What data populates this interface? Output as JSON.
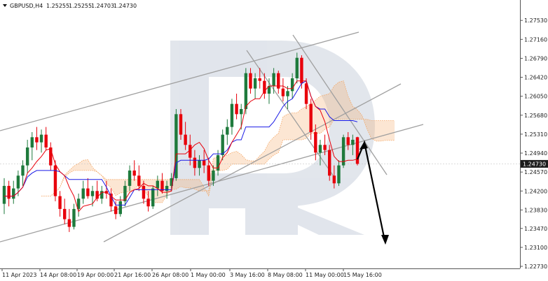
{
  "header": {
    "symbol": "GBPUSD,H4",
    "open": "1.25255",
    "high": "1.25255",
    "low": "1.24703",
    "close": "1.24730"
  },
  "colors": {
    "bull": "#1e7a3c",
    "bear": "#e8000b",
    "tenkan": "#e8000b",
    "kijun": "#1a1ae6",
    "cloud": "#f4a460",
    "trendline": "#a0a0a0",
    "arrow": "#000000",
    "watermark": "#d8dde6",
    "price_tag_bg": "#1c1c1c"
  },
  "chart_data": {
    "type": "candlestick",
    "y_ticks": [
      "1.27530",
      "1.27160",
      "1.26790",
      "1.26420",
      "1.26050",
      "1.25680",
      "1.25310",
      "1.24940",
      "1.24570",
      "1.24200",
      "1.23830",
      "1.23470",
      "1.23100",
      "1.22730"
    ],
    "ylim": [
      1.2273,
      1.2771
    ],
    "current_price": "1.24730",
    "x_ticks": [
      "11 Apr 2023",
      "14 Apr 08:00",
      "19 Apr 00:00",
      "21 Apr 16:00",
      "26 Apr 08:00",
      "1 May 00:00",
      "3 May 16:00",
      "8 May 08:00",
      "11 May 00:00",
      "15 May 16:00"
    ],
    "candles": [
      [
        1.2395,
        1.2445,
        1.2375,
        1.243
      ],
      [
        1.243,
        1.244,
        1.239,
        1.2405
      ],
      [
        1.2405,
        1.244,
        1.2395,
        1.2425
      ],
      [
        1.2425,
        1.246,
        1.241,
        1.245
      ],
      [
        1.245,
        1.248,
        1.243,
        1.247
      ],
      [
        1.247,
        1.252,
        1.2455,
        1.2505
      ],
      [
        1.2505,
        1.2535,
        1.248,
        1.2525
      ],
      [
        1.2525,
        1.2545,
        1.25,
        1.2515
      ],
      [
        1.2515,
        1.254,
        1.2495,
        1.253
      ],
      [
        1.253,
        1.2545,
        1.25,
        1.2505
      ],
      [
        1.2505,
        1.2515,
        1.246,
        1.247
      ],
      [
        1.247,
        1.248,
        1.24,
        1.241
      ],
      [
        1.241,
        1.242,
        1.237,
        1.2385
      ],
      [
        1.2385,
        1.2405,
        1.2355,
        1.2365
      ],
      [
        1.2365,
        1.2385,
        1.234,
        1.235
      ],
      [
        1.235,
        1.2395,
        1.2345,
        1.2385
      ],
      [
        1.2385,
        1.2415,
        1.237,
        1.2405
      ],
      [
        1.2405,
        1.244,
        1.2395,
        1.2425
      ],
      [
        1.2425,
        1.2445,
        1.2405,
        1.241
      ],
      [
        1.241,
        1.243,
        1.239,
        1.242
      ],
      [
        1.242,
        1.244,
        1.24,
        1.2405
      ],
      [
        1.2405,
        1.243,
        1.2395,
        1.242
      ],
      [
        1.242,
        1.244,
        1.2405,
        1.2415
      ],
      [
        1.2415,
        1.2425,
        1.238,
        1.239
      ],
      [
        1.239,
        1.24,
        1.2365,
        1.2375
      ],
      [
        1.2375,
        1.241,
        1.237,
        1.24
      ],
      [
        1.24,
        1.244,
        1.239,
        1.243
      ],
      [
        1.243,
        1.247,
        1.242,
        1.246
      ],
      [
        1.246,
        1.248,
        1.244,
        1.245
      ],
      [
        1.245,
        1.247,
        1.242,
        1.243
      ],
      [
        1.243,
        1.244,
        1.2395,
        1.2405
      ],
      [
        1.2405,
        1.242,
        1.238,
        1.239
      ],
      [
        1.239,
        1.243,
        1.2385,
        1.2425
      ],
      [
        1.2425,
        1.245,
        1.241,
        1.244
      ],
      [
        1.244,
        1.2455,
        1.2415,
        1.242
      ],
      [
        1.242,
        1.244,
        1.2405,
        1.243
      ],
      [
        1.243,
        1.2455,
        1.242,
        1.2445
      ],
      [
        1.2445,
        1.258,
        1.244,
        1.257
      ],
      [
        1.257,
        1.258,
        1.252,
        1.253
      ],
      [
        1.253,
        1.2555,
        1.25,
        1.251
      ],
      [
        1.251,
        1.253,
        1.247,
        1.2485
      ],
      [
        1.2485,
        1.25,
        1.245,
        1.2465
      ],
      [
        1.2465,
        1.249,
        1.245,
        1.248
      ],
      [
        1.248,
        1.25,
        1.2455,
        1.247
      ],
      [
        1.247,
        1.2485,
        1.243,
        1.244
      ],
      [
        1.244,
        1.247,
        1.243,
        1.246
      ],
      [
        1.246,
        1.25,
        1.245,
        1.249
      ],
      [
        1.249,
        1.254,
        1.248,
        1.253
      ],
      [
        1.253,
        1.256,
        1.251,
        1.2545
      ],
      [
        1.2545,
        1.26,
        1.253,
        1.259
      ],
      [
        1.259,
        1.261,
        1.256,
        1.257
      ],
      [
        1.257,
        1.259,
        1.254,
        1.258
      ],
      [
        1.258,
        1.266,
        1.257,
        1.265
      ],
      [
        1.265,
        1.266,
        1.261,
        1.262
      ],
      [
        1.262,
        1.265,
        1.26,
        1.264
      ],
      [
        1.264,
        1.266,
        1.262,
        1.2635
      ],
      [
        1.2635,
        1.265,
        1.26,
        1.261
      ],
      [
        1.261,
        1.264,
        1.259,
        1.2625
      ],
      [
        1.2625,
        1.266,
        1.261,
        1.265
      ],
      [
        1.265,
        1.2655,
        1.261,
        1.262
      ],
      [
        1.262,
        1.264,
        1.2595,
        1.2605
      ],
      [
        1.2605,
        1.2625,
        1.258,
        1.2615
      ],
      [
        1.2615,
        1.265,
        1.26,
        1.264
      ],
      [
        1.264,
        1.269,
        1.263,
        1.268
      ],
      [
        1.268,
        1.2685,
        1.262,
        1.263
      ],
      [
        1.263,
        1.264,
        1.258,
        1.259
      ],
      [
        1.259,
        1.26,
        1.252,
        1.2535
      ],
      [
        1.2535,
        1.255,
        1.248,
        1.2495
      ],
      [
        1.2495,
        1.252,
        1.247,
        1.251
      ],
      [
        1.251,
        1.253,
        1.249,
        1.25
      ],
      [
        1.25,
        1.251,
        1.244,
        1.245
      ],
      [
        1.245,
        1.247,
        1.2425,
        1.2435
      ],
      [
        1.2435,
        1.248,
        1.243,
        1.247
      ],
      [
        1.247,
        1.253,
        1.2465,
        1.2525
      ],
      [
        1.2525,
        1.2535,
        1.25,
        1.251
      ],
      [
        1.251,
        1.253,
        1.249,
        1.252
      ],
      [
        1.2525,
        1.2526,
        1.247,
        1.2473
      ]
    ]
  }
}
